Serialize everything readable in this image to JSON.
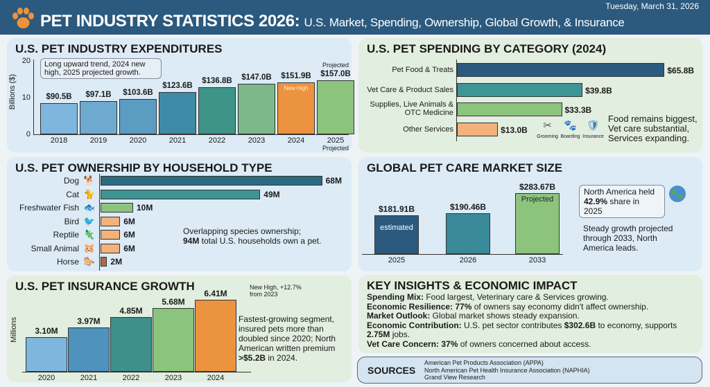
{
  "header": {
    "title": "PET INDUSTRY STATISTICS 2026:",
    "subtitle": "U.S. Market, Spending, Ownership, Global Growth, & Insurance",
    "date": "Tuesday, March 31, 2026",
    "icon": "paw-icon"
  },
  "chart_data": [
    {
      "type": "bar",
      "title": "U.S. PET INDUSTRY EXPENDITURES",
      "ylabel": "Billions ($)",
      "yticks": [
        "0",
        "10",
        "20"
      ],
      "categories": [
        "2018",
        "2019",
        "2020",
        "2021",
        "2022",
        "2023",
        "2024",
        "2025"
      ],
      "values": [
        90.5,
        97.1,
        103.6,
        123.6,
        136.8,
        147.0,
        151.9,
        157.0
      ],
      "data_labels": [
        "$90.5B",
        "$97.1B",
        "$103.6B",
        "$123.6B",
        "$136.8B",
        "$147.0B",
        "$151.9B",
        "$157.0B"
      ],
      "colors": [
        "#7fb6dd",
        "#6ea9d0",
        "#5b9cc2",
        "#3f8aa6",
        "#3f9488",
        "#7cb88a",
        "#ec9340",
        "#8cc47e"
      ],
      "annotation": "Long upward trend, 2024 new high, 2025 projected growth.",
      "bar_note_2024": "New High",
      "projected_label": "Projected",
      "xnote_2025": "Projected"
    },
    {
      "type": "bar",
      "orientation": "horizontal",
      "title": "U.S. PET SPENDING BY CATEGORY (2024)",
      "categories": [
        "Pet Food & Treats",
        "Vet Care & Product Sales",
        "Supplies, Live Animals & OTC Medicine",
        "Other Services"
      ],
      "values": [
        65.8,
        39.8,
        33.3,
        13.0
      ],
      "data_labels": [
        "$65.8B",
        "$39.8B",
        "$33.3B",
        "$13.0B"
      ],
      "colors": [
        "#2c5a7e",
        "#3f9494",
        "#8cc47e",
        "#f2b27a"
      ],
      "service_icons": [
        {
          "icon": "scissors-icon",
          "label": "Grooming"
        },
        {
          "icon": "paw-icon",
          "label": "Boarding"
        },
        {
          "icon": "shield-icon",
          "label": "Insurance"
        }
      ],
      "note": "Food remains biggest, Vet care substantial, Services expanding."
    },
    {
      "type": "bar",
      "orientation": "horizontal",
      "title": "U.S. PET OWNERSHIP BY HOUSEHOLD TYPE",
      "categories": [
        "Dog",
        "Cat",
        "Freshwater Fish",
        "Bird",
        "Reptile",
        "Small Animal",
        "Horse"
      ],
      "values": [
        68,
        49,
        10,
        6,
        6,
        6,
        2
      ],
      "data_labels": [
        "68M",
        "49M",
        "10M",
        "6M",
        "6M",
        "6M",
        "2M"
      ],
      "colors": [
        "#2c6a80",
        "#3f9494",
        "#8cc47e",
        "#f2b27a",
        "#f2b27a",
        "#f2b27a",
        "#b5674a"
      ],
      "note_line1": "Overlapping species ownership;",
      "note_bold": "94M",
      "note_line2": " total U.S. households own a pet."
    },
    {
      "type": "bar",
      "title": "GLOBAL PET CARE MARKET SIZE",
      "categories": [
        "2025",
        "2026",
        "2033"
      ],
      "values": [
        181.91,
        190.46,
        283.67
      ],
      "data_labels": [
        "$181.91B",
        "$190.46B",
        "$283.67B"
      ],
      "bar_notes": [
        "estimated",
        "",
        "Projected"
      ],
      "colors": [
        "#2c5a7e",
        "#3a8a9a",
        "#8cc47e"
      ],
      "callout_line1": "North America held",
      "callout_bold": "42.9%",
      "callout_line2": " share in 2025",
      "note": "Steady growth projected through 2033, North America leads."
    },
    {
      "type": "bar",
      "title": "U.S. PET INSURANCE GROWTH",
      "ylabel": "Millions",
      "categories": [
        "2020",
        "2021",
        "2022",
        "2023",
        "2024"
      ],
      "values": [
        3.1,
        3.97,
        4.85,
        5.68,
        6.41
      ],
      "data_labels": [
        "3.10M",
        "3.97M",
        "4.85M",
        "5.68M",
        "6.41M"
      ],
      "colors": [
        "#7fb6dd",
        "#4f93bd",
        "#3f8f8a",
        "#8cc47e",
        "#ec9340"
      ],
      "annotation": "New High, +12.7% from 2023",
      "note": "Fastest-growing segment, insured pets more than doubled since 2020; North American written premium",
      "note_bold": ">$5.2B",
      "note_end": " in 2024."
    }
  ],
  "insights": {
    "title": "KEY INSIGHTS & ECONOMIC IMPACT",
    "items": [
      {
        "k": "Spending Mix:",
        "v": " Food largest, Veterinary care & Services growing."
      },
      {
        "k": "Economic Resilience:",
        "b": " 77%",
        "v": " of owners say economy didn't affect ownership."
      },
      {
        "k": "Market Outlook:",
        "v": " Global market shows steady expansion."
      },
      {
        "k": "Economic Contribution:",
        "v": " U.S. pet sector contributes ",
        "b": "$302.6B",
        "v2": " to economy, supports ",
        "b2": "2.75M",
        "v3": " jobs."
      },
      {
        "k": "Vet Care Concern:",
        "b": " 37%",
        "v": " of owners concerned about access."
      }
    ]
  },
  "sources": {
    "title": "SOURCES",
    "items": [
      "American Pet Products Association (APPA)",
      "North American Pet Health Insurance Association (NAPHIA)",
      "Grand View Research"
    ]
  }
}
